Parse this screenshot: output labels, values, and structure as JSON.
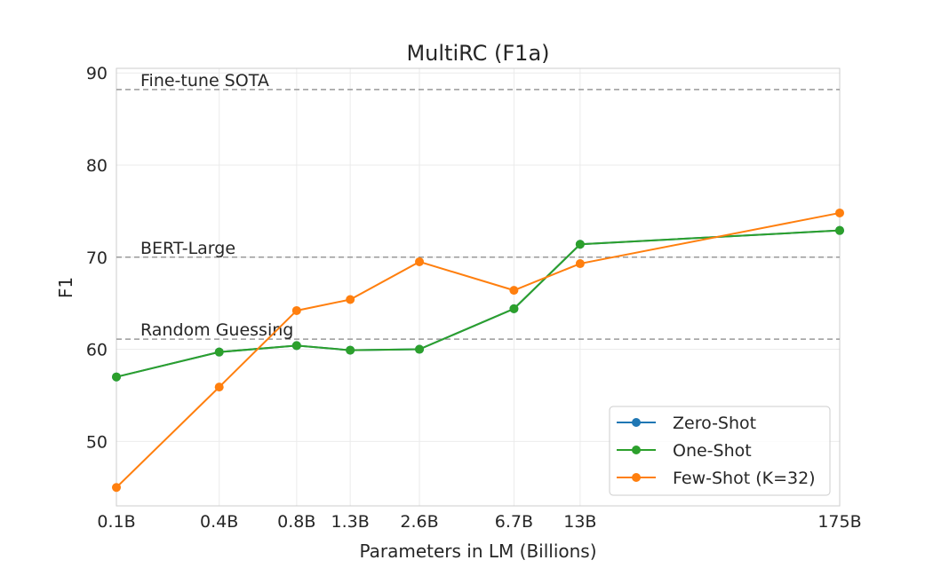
{
  "chart_data": {
    "type": "line",
    "title": "MultiRC (F1a)",
    "xlabel": "Parameters in LM (Billions)",
    "ylabel": "F1",
    "categories": [
      "0.1B",
      "0.4B",
      "0.8B",
      "1.3B",
      "2.6B",
      "6.7B",
      "13B",
      "175B"
    ],
    "x": [
      0.125,
      0.35,
      0.76,
      1.3,
      2.6,
      6.7,
      13,
      175
    ],
    "xscale": "log",
    "ylim": [
      43,
      90.5
    ],
    "yticks": [
      50,
      60,
      70,
      80,
      90
    ],
    "grid": true,
    "legend_position": "lower-right",
    "series": [
      {
        "name": "Zero-Shot",
        "color": "#1f77b4",
        "values": [
          57.0,
          59.7,
          60.4,
          59.9,
          60.0,
          64.4,
          71.4,
          72.9
        ]
      },
      {
        "name": "One-Shot",
        "color": "#2ca02c",
        "values": [
          57.0,
          59.7,
          60.4,
          59.9,
          60.0,
          64.4,
          71.4,
          72.9
        ]
      },
      {
        "name": "Few-Shot (K=32)",
        "color": "#ff7f0e",
        "values": [
          45.0,
          55.9,
          64.2,
          65.4,
          69.5,
          66.4,
          69.3,
          74.8
        ]
      }
    ],
    "reference_lines": [
      {
        "label": "Fine-tune SOTA",
        "value": 88.2
      },
      {
        "label": "BERT-Large",
        "value": 70.0
      },
      {
        "label": "Random Guessing",
        "value": 61.1
      }
    ]
  }
}
